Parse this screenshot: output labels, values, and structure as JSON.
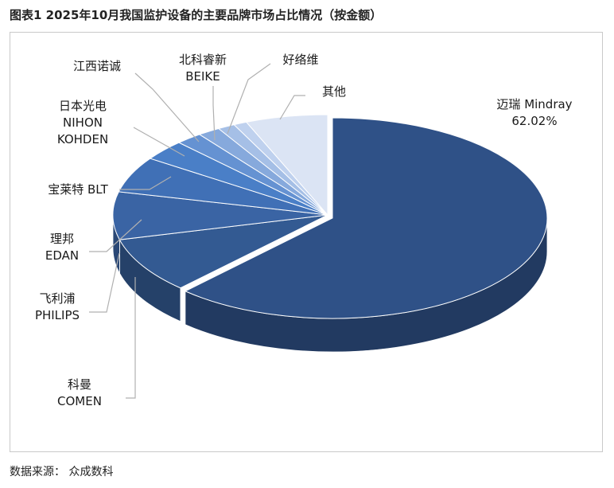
{
  "title": "图表1 2025年10月我国监护设备的主要品牌市场占比情况（按金额）",
  "source": "数据来源：  众成数科",
  "chart_data": {
    "type": "pie",
    "style": "3d-exploded-first-slice",
    "legend": "none",
    "slices": [
      {
        "lines": [
          "迈瑞 Mindray",
          "62.02%"
        ],
        "value": 62.02,
        "color": "#2f5187"
      },
      {
        "lines": [
          "科曼",
          "COMEN"
        ],
        "value": 9.0,
        "color": "#335a92"
      },
      {
        "lines": [
          "飞利浦",
          "PHILIPS"
        ],
        "value": 7.7,
        "color": "#3a64a4"
      },
      {
        "lines": [
          "理邦",
          "EDAN"
        ],
        "value": 5.8,
        "color": "#4070b6"
      },
      {
        "lines": [
          "宝莱特 BLT"
        ],
        "value": 3.3,
        "color": "#4a7fc7"
      },
      {
        "lines": [
          "日本光电",
          "NIHON",
          "KOHDEN"
        ],
        "value": 2.0,
        "color": "#6592d2"
      },
      {
        "lines": [
          "江西诺诚"
        ],
        "value": 1.7,
        "color": "#86a9dc"
      },
      {
        "lines": [
          "北科睿新",
          "BEIKE"
        ],
        "value": 1.3,
        "color": "#a5bfe6"
      },
      {
        "lines": [
          "好络维"
        ],
        "value": 1.0,
        "color": "#bfd1ee"
      },
      {
        "lines": [
          "其他"
        ],
        "value": 6.18,
        "color": "#dbe4f4"
      }
    ]
  }
}
